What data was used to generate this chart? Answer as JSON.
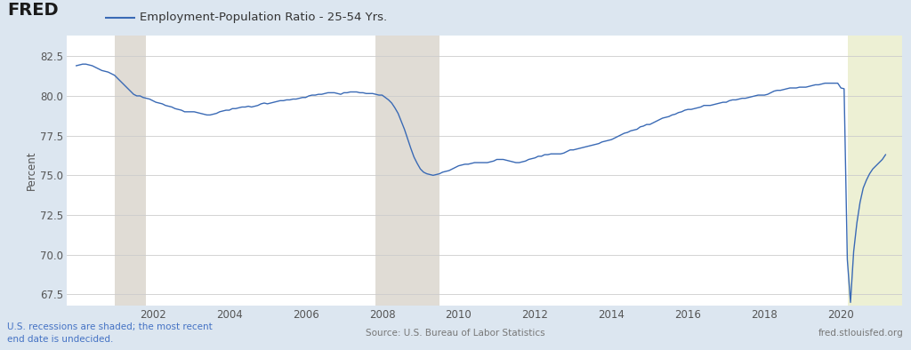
{
  "title": "Employment-Population Ratio - 25-54 Yrs.",
  "ylabel": "Percent",
  "yticks": [
    67.5,
    70.0,
    72.5,
    75.0,
    77.5,
    80.0,
    82.5
  ],
  "ylim": [
    66.8,
    83.8
  ],
  "xlim": [
    1999.75,
    2021.6
  ],
  "xtick_years": [
    2002,
    2004,
    2006,
    2008,
    2010,
    2012,
    2014,
    2016,
    2018,
    2020
  ],
  "recession_shades": [
    {
      "start": 2001.0,
      "end": 2001.83
    },
    {
      "start": 2007.83,
      "end": 2009.5
    }
  ],
  "recent_shade": {
    "start": 2020.17,
    "end": 2021.6
  },
  "line_color": "#3a6ab5",
  "background_color": "#dce6f0",
  "plot_bg_color": "#ffffff",
  "recession_color": "#e0dcd5",
  "recent_recession_color": "#edf0d4",
  "footer_left": "U.S. recessions are shaded; the most recent\nend date is undecided.",
  "footer_center": "Source: U.S. Bureau of Labor Statistics",
  "footer_right": "fred.stlouisfed.org",
  "data": {
    "dates": [
      2000.0,
      2000.083,
      2000.167,
      2000.25,
      2000.333,
      2000.417,
      2000.5,
      2000.583,
      2000.667,
      2000.75,
      2000.833,
      2000.917,
      2001.0,
      2001.083,
      2001.167,
      2001.25,
      2001.333,
      2001.417,
      2001.5,
      2001.583,
      2001.667,
      2001.75,
      2001.833,
      2001.917,
      2002.0,
      2002.083,
      2002.167,
      2002.25,
      2002.333,
      2002.417,
      2002.5,
      2002.583,
      2002.667,
      2002.75,
      2002.833,
      2002.917,
      2003.0,
      2003.083,
      2003.167,
      2003.25,
      2003.333,
      2003.417,
      2003.5,
      2003.583,
      2003.667,
      2003.75,
      2003.833,
      2003.917,
      2004.0,
      2004.083,
      2004.167,
      2004.25,
      2004.333,
      2004.417,
      2004.5,
      2004.583,
      2004.667,
      2004.75,
      2004.833,
      2004.917,
      2005.0,
      2005.083,
      2005.167,
      2005.25,
      2005.333,
      2005.417,
      2005.5,
      2005.583,
      2005.667,
      2005.75,
      2005.833,
      2005.917,
      2006.0,
      2006.083,
      2006.167,
      2006.25,
      2006.333,
      2006.417,
      2006.5,
      2006.583,
      2006.667,
      2006.75,
      2006.833,
      2006.917,
      2007.0,
      2007.083,
      2007.167,
      2007.25,
      2007.333,
      2007.417,
      2007.5,
      2007.583,
      2007.667,
      2007.75,
      2007.833,
      2007.917,
      2008.0,
      2008.083,
      2008.167,
      2008.25,
      2008.333,
      2008.417,
      2008.5,
      2008.583,
      2008.667,
      2008.75,
      2008.833,
      2008.917,
      2009.0,
      2009.083,
      2009.167,
      2009.25,
      2009.333,
      2009.417,
      2009.5,
      2009.583,
      2009.667,
      2009.75,
      2009.833,
      2009.917,
      2010.0,
      2010.083,
      2010.167,
      2010.25,
      2010.333,
      2010.417,
      2010.5,
      2010.583,
      2010.667,
      2010.75,
      2010.833,
      2010.917,
      2011.0,
      2011.083,
      2011.167,
      2011.25,
      2011.333,
      2011.417,
      2011.5,
      2011.583,
      2011.667,
      2011.75,
      2011.833,
      2011.917,
      2012.0,
      2012.083,
      2012.167,
      2012.25,
      2012.333,
      2012.417,
      2012.5,
      2012.583,
      2012.667,
      2012.75,
      2012.833,
      2012.917,
      2013.0,
      2013.083,
      2013.167,
      2013.25,
      2013.333,
      2013.417,
      2013.5,
      2013.583,
      2013.667,
      2013.75,
      2013.833,
      2013.917,
      2014.0,
      2014.083,
      2014.167,
      2014.25,
      2014.333,
      2014.417,
      2014.5,
      2014.583,
      2014.667,
      2014.75,
      2014.833,
      2014.917,
      2015.0,
      2015.083,
      2015.167,
      2015.25,
      2015.333,
      2015.417,
      2015.5,
      2015.583,
      2015.667,
      2015.75,
      2015.833,
      2015.917,
      2016.0,
      2016.083,
      2016.167,
      2016.25,
      2016.333,
      2016.417,
      2016.5,
      2016.583,
      2016.667,
      2016.75,
      2016.833,
      2016.917,
      2017.0,
      2017.083,
      2017.167,
      2017.25,
      2017.333,
      2017.417,
      2017.5,
      2017.583,
      2017.667,
      2017.75,
      2017.833,
      2017.917,
      2018.0,
      2018.083,
      2018.167,
      2018.25,
      2018.333,
      2018.417,
      2018.5,
      2018.583,
      2018.667,
      2018.75,
      2018.833,
      2018.917,
      2019.0,
      2019.083,
      2019.167,
      2019.25,
      2019.333,
      2019.417,
      2019.5,
      2019.583,
      2019.667,
      2019.75,
      2019.833,
      2019.917,
      2020.0,
      2020.083,
      2020.167,
      2020.25,
      2020.333,
      2020.417,
      2020.5,
      2020.583,
      2020.667,
      2020.75,
      2020.833,
      2020.917,
      2021.0,
      2021.083,
      2021.167
    ],
    "values": [
      81.9,
      81.95,
      82.0,
      82.0,
      81.95,
      81.9,
      81.8,
      81.7,
      81.6,
      81.55,
      81.5,
      81.4,
      81.3,
      81.1,
      80.9,
      80.7,
      80.5,
      80.3,
      80.1,
      80.0,
      80.0,
      79.9,
      79.85,
      79.8,
      79.7,
      79.6,
      79.55,
      79.5,
      79.4,
      79.35,
      79.3,
      79.2,
      79.15,
      79.1,
      79.0,
      79.0,
      79.0,
      79.0,
      78.95,
      78.9,
      78.85,
      78.8,
      78.8,
      78.85,
      78.9,
      79.0,
      79.05,
      79.1,
      79.1,
      79.2,
      79.2,
      79.25,
      79.3,
      79.3,
      79.35,
      79.3,
      79.35,
      79.4,
      79.5,
      79.55,
      79.5,
      79.55,
      79.6,
      79.65,
      79.7,
      79.7,
      79.75,
      79.75,
      79.8,
      79.8,
      79.85,
      79.9,
      79.9,
      80.0,
      80.05,
      80.05,
      80.1,
      80.1,
      80.15,
      80.2,
      80.2,
      80.2,
      80.15,
      80.1,
      80.2,
      80.2,
      80.25,
      80.25,
      80.25,
      80.2,
      80.2,
      80.15,
      80.15,
      80.15,
      80.1,
      80.05,
      80.05,
      79.9,
      79.75,
      79.55,
      79.25,
      78.9,
      78.4,
      77.9,
      77.3,
      76.7,
      76.15,
      75.75,
      75.4,
      75.2,
      75.1,
      75.05,
      75.0,
      75.05,
      75.1,
      75.2,
      75.25,
      75.3,
      75.4,
      75.5,
      75.6,
      75.65,
      75.7,
      75.7,
      75.75,
      75.8,
      75.8,
      75.8,
      75.8,
      75.8,
      75.85,
      75.9,
      76.0,
      76.0,
      76.0,
      75.95,
      75.9,
      75.85,
      75.8,
      75.8,
      75.85,
      75.9,
      76.0,
      76.05,
      76.1,
      76.2,
      76.2,
      76.3,
      76.3,
      76.35,
      76.35,
      76.35,
      76.35,
      76.4,
      76.5,
      76.6,
      76.6,
      76.65,
      76.7,
      76.75,
      76.8,
      76.85,
      76.9,
      76.95,
      77.0,
      77.1,
      77.15,
      77.2,
      77.25,
      77.35,
      77.45,
      77.55,
      77.65,
      77.7,
      77.8,
      77.85,
      77.9,
      78.05,
      78.1,
      78.2,
      78.2,
      78.3,
      78.4,
      78.5,
      78.6,
      78.65,
      78.7,
      78.8,
      78.85,
      78.95,
      79.0,
      79.1,
      79.15,
      79.15,
      79.2,
      79.25,
      79.3,
      79.4,
      79.4,
      79.4,
      79.45,
      79.5,
      79.55,
      79.6,
      79.6,
      79.7,
      79.75,
      79.75,
      79.8,
      79.85,
      79.85,
      79.9,
      79.95,
      80.0,
      80.05,
      80.05,
      80.05,
      80.1,
      80.2,
      80.3,
      80.35,
      80.35,
      80.4,
      80.45,
      80.5,
      80.5,
      80.5,
      80.55,
      80.55,
      80.55,
      80.6,
      80.65,
      80.7,
      80.7,
      80.75,
      80.8,
      80.8,
      80.8,
      80.8,
      80.8,
      80.5,
      80.45,
      69.7,
      67.0,
      70.2,
      72.0,
      73.3,
      74.2,
      74.7,
      75.1,
      75.4,
      75.6,
      75.8,
      76.0,
      76.3
    ]
  }
}
